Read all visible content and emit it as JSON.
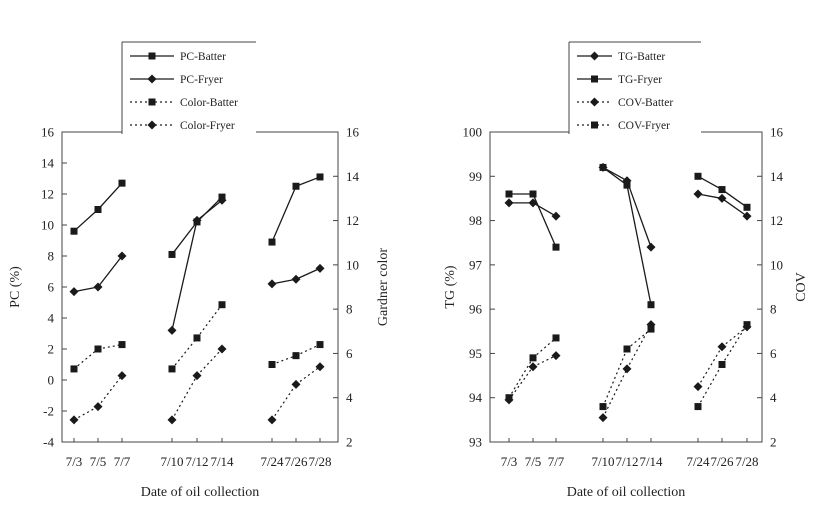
{
  "chart_data": [
    {
      "type": "line",
      "xlabel": "Date of oil collection",
      "ylabel": "PC (%)",
      "y2label": "Gardner color",
      "categories": [
        "7/3",
        "7/5",
        "7/7",
        "7/10",
        "7/12",
        "7/14",
        "7/24",
        "7/26",
        "7/28"
      ],
      "groups": [
        [
          0,
          1,
          2
        ],
        [
          3,
          4,
          5
        ],
        [
          6,
          7,
          8
        ]
      ],
      "ylim": [
        -4,
        16
      ],
      "yticks": [
        "-4",
        "-2",
        "0",
        "2",
        "4",
        "6",
        "8",
        "10",
        "12",
        "14",
        "16"
      ],
      "y2lim": [
        2,
        16
      ],
      "y2ticks": [
        "2",
        "4",
        "6",
        "8",
        "10",
        "12",
        "14",
        "16"
      ],
      "legend_position": "top-center",
      "series": [
        {
          "name": "PC-Batter",
          "axis": "left",
          "marker": "square",
          "line": "solid",
          "values": [
            9.6,
            11.0,
            12.7,
            8.1,
            10.2,
            11.8,
            8.9,
            12.5,
            13.1
          ]
        },
        {
          "name": "PC-Fryer",
          "axis": "left",
          "marker": "diamond",
          "line": "solid",
          "values": [
            5.7,
            6.0,
            8.0,
            3.2,
            10.3,
            11.6,
            6.2,
            6.5,
            7.2
          ]
        },
        {
          "name": "Color-Batter",
          "axis": "right",
          "marker": "square",
          "line": "dotted",
          "values": [
            5.3,
            6.2,
            6.4,
            5.3,
            6.7,
            8.2,
            5.5,
            5.9,
            6.4
          ]
        },
        {
          "name": "Color-Fryer",
          "axis": "right",
          "marker": "diamond",
          "line": "dotted",
          "values": [
            3.0,
            3.6,
            5.0,
            3.0,
            5.0,
            6.2,
            3.0,
            4.6,
            5.4
          ]
        }
      ]
    },
    {
      "type": "line",
      "xlabel": "Date of oil collection",
      "ylabel": "TG (%)",
      "y2label": "COV",
      "categories": [
        "7/3",
        "7/5",
        "7/7",
        "7/10",
        "7/12",
        "7/14",
        "7/24",
        "7/26",
        "7/28"
      ],
      "groups": [
        [
          0,
          1,
          2
        ],
        [
          3,
          4,
          5
        ],
        [
          6,
          7,
          8
        ]
      ],
      "ylim": [
        93,
        100
      ],
      "yticks": [
        "93",
        "94",
        "95",
        "96",
        "97",
        "98",
        "99",
        "100"
      ],
      "y2lim": [
        2,
        16
      ],
      "y2ticks": [
        "2",
        "4",
        "6",
        "8",
        "10",
        "12",
        "14",
        "16"
      ],
      "legend_position": "top-center",
      "series": [
        {
          "name": "TG-Batter",
          "axis": "left",
          "marker": "diamond",
          "line": "solid",
          "values": [
            98.4,
            98.4,
            98.1,
            99.2,
            98.9,
            97.4,
            98.6,
            98.5,
            98.1
          ]
        },
        {
          "name": "TG-Fryer",
          "axis": "left",
          "marker": "square",
          "line": "solid",
          "values": [
            98.6,
            98.6,
            97.4,
            99.2,
            98.8,
            96.1,
            99.0,
            98.7,
            98.3
          ]
        },
        {
          "name": "COV-Batter",
          "axis": "right",
          "marker": "diamond",
          "line": "dotted",
          "values": [
            3.9,
            5.4,
            5.9,
            3.1,
            5.3,
            7.3,
            4.5,
            6.3,
            7.2
          ]
        },
        {
          "name": "COV-Fryer",
          "axis": "right",
          "marker": "square",
          "line": "dotted",
          "values": [
            4.0,
            5.8,
            6.7,
            3.6,
            6.2,
            7.1,
            3.6,
            5.5,
            7.3
          ]
        }
      ]
    }
  ]
}
